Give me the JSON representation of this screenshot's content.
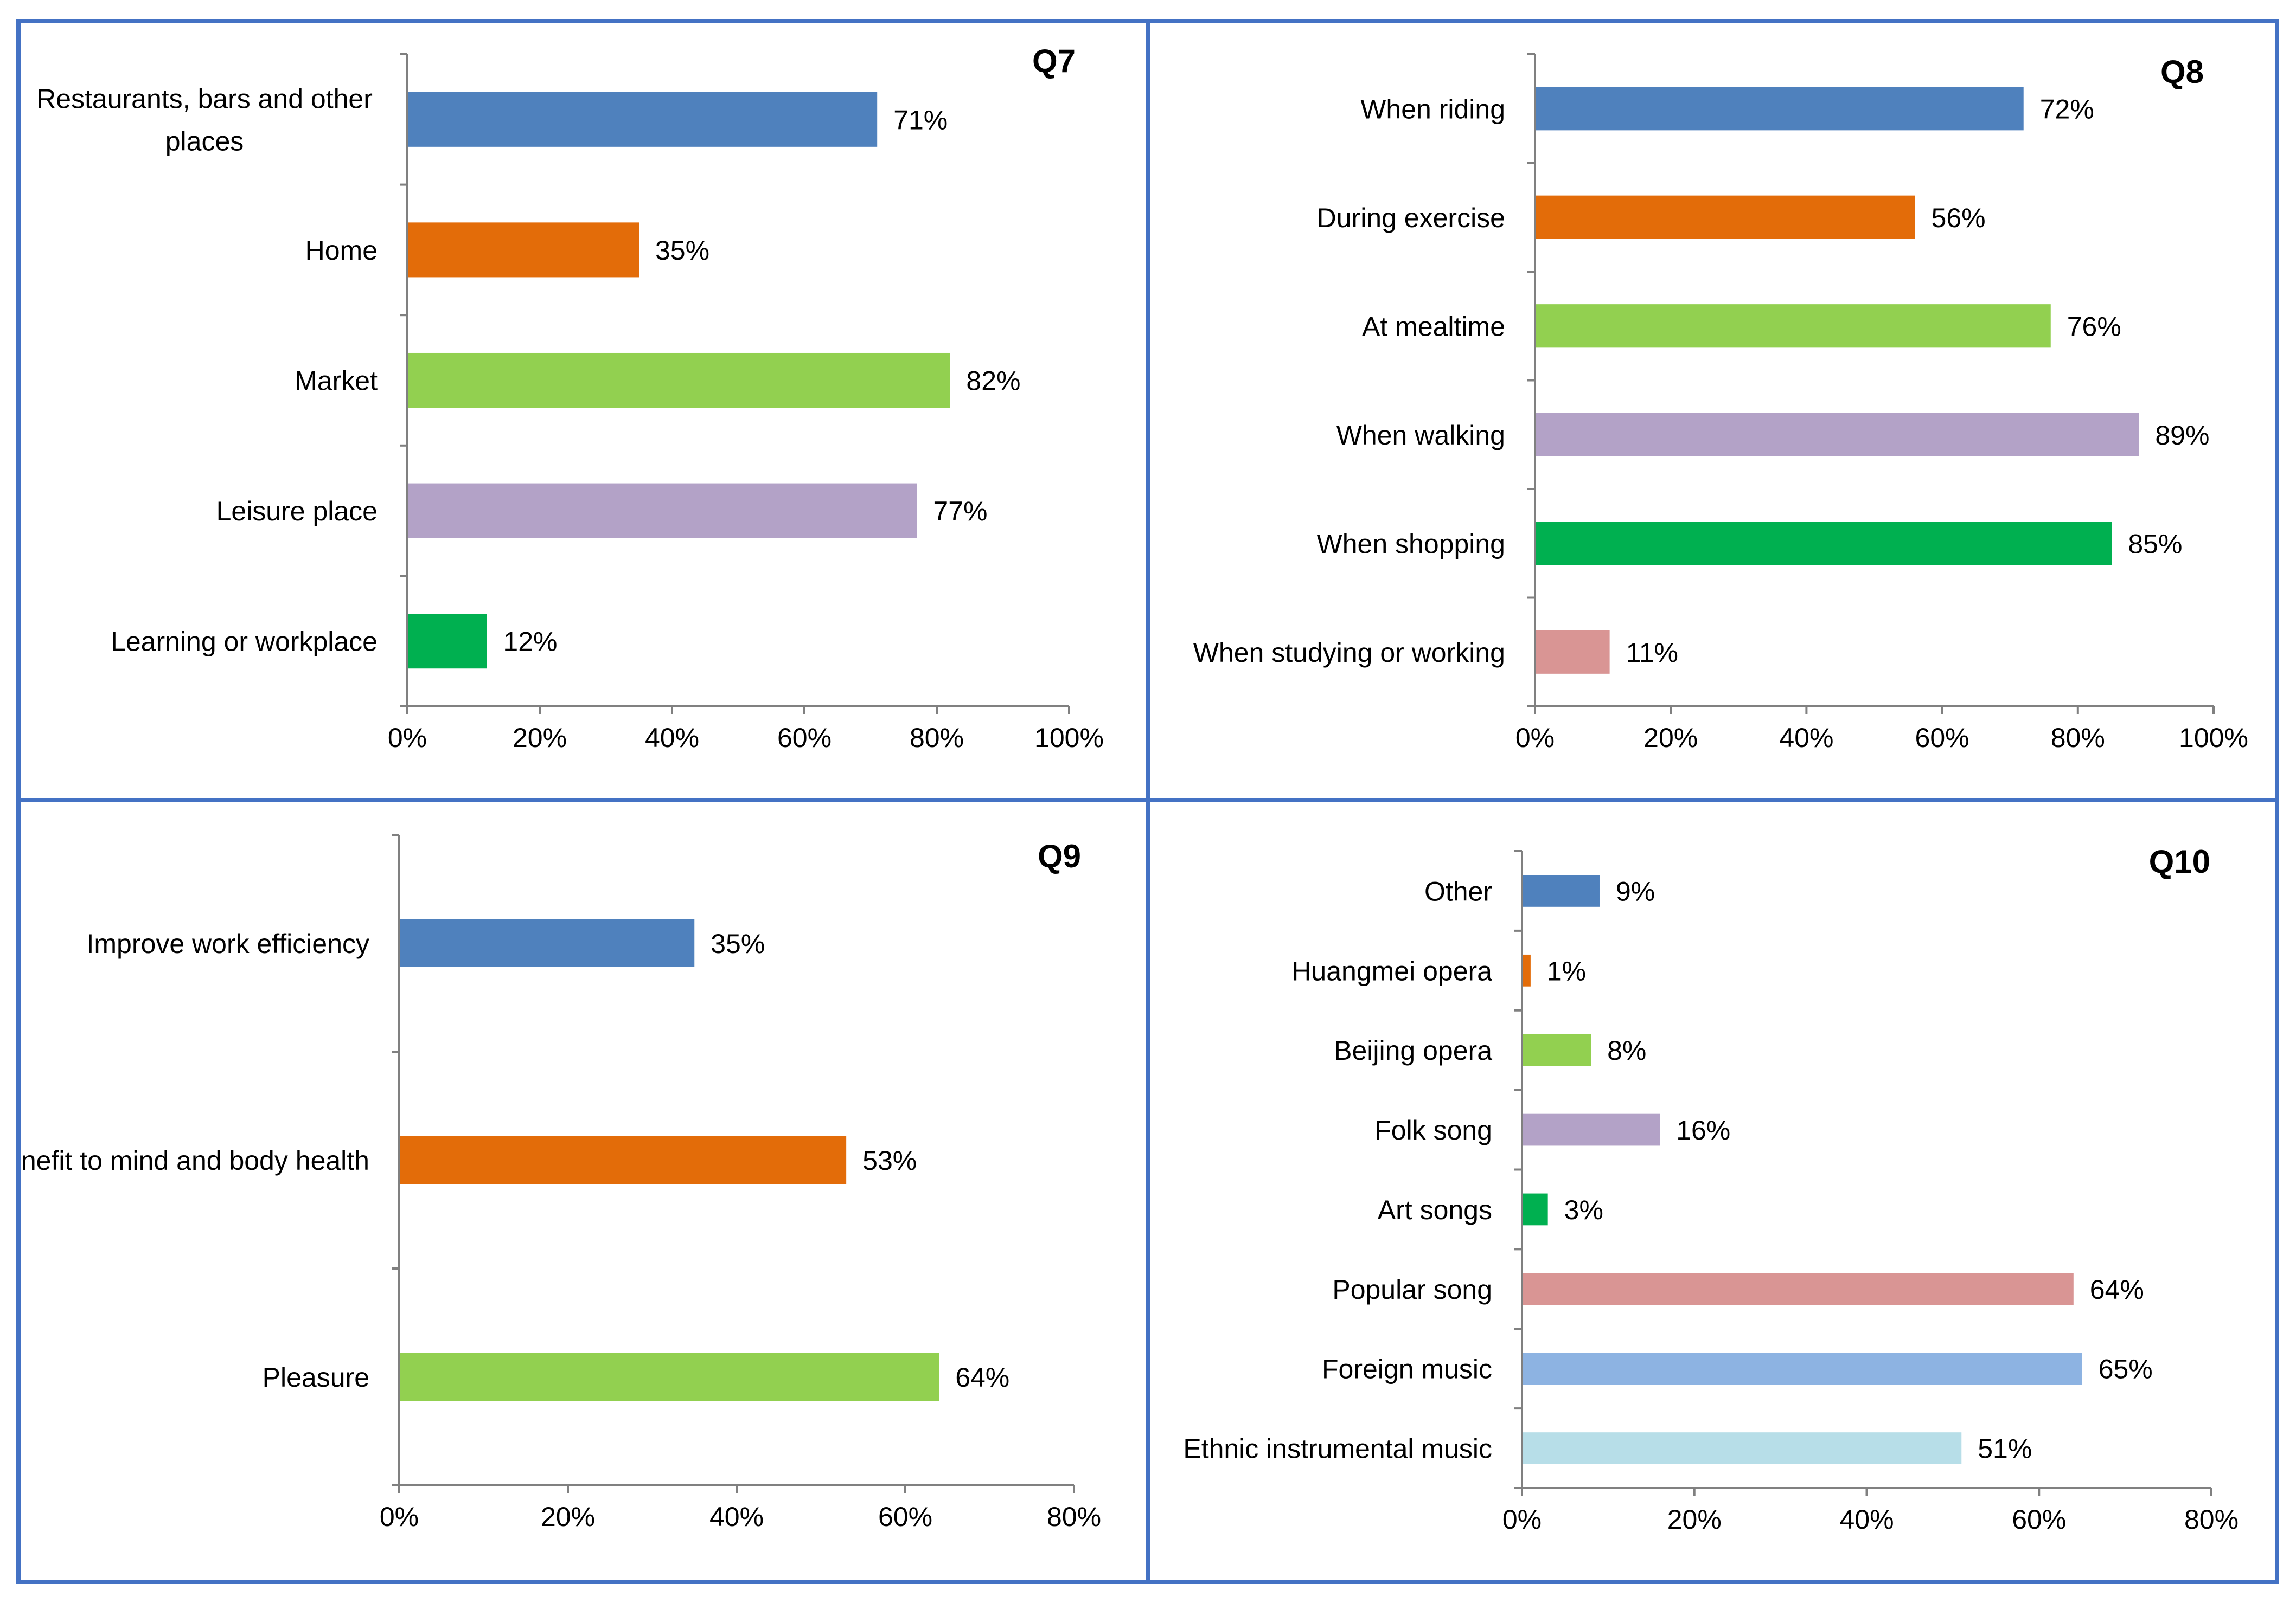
{
  "chart_data": [
    {
      "type": "bar",
      "orientation": "horizontal",
      "title": "Q7",
      "categories": [
        "Restaurants, bars and other places",
        "Home",
        "Market",
        "Leisure place",
        "Learning or workplace"
      ],
      "values": [
        71,
        35,
        82,
        77,
        12
      ],
      "value_labels": [
        "71%",
        "35%",
        "82%",
        "77%",
        "12%"
      ],
      "colors": [
        "#4F81BD",
        "#E36C09",
        "#92D050",
        "#B3A2C7",
        "#00B050"
      ],
      "xlim": [
        0,
        100
      ],
      "xticks": [
        "0%",
        "20%",
        "40%",
        "60%",
        "80%",
        "100%"
      ],
      "xlabel": "",
      "ylabel": "",
      "grid": false
    },
    {
      "type": "bar",
      "orientation": "horizontal",
      "title": "Q8",
      "categories": [
        "When riding",
        "During exercise",
        "At mealtime",
        "When walking",
        "When shopping",
        "When studying or working"
      ],
      "values": [
        72,
        56,
        76,
        89,
        85,
        11
      ],
      "value_labels": [
        "72%",
        "56%",
        "76%",
        "89%",
        "85%",
        "11%"
      ],
      "colors": [
        "#4F81BD",
        "#E36C09",
        "#92D050",
        "#B3A2C7",
        "#00B050",
        "#D99594"
      ],
      "xlim": [
        0,
        100
      ],
      "xticks": [
        "0%",
        "20%",
        "40%",
        "60%",
        "80%",
        "100%"
      ],
      "xlabel": "",
      "ylabel": "",
      "grid": false
    },
    {
      "type": "bar",
      "orientation": "horizontal",
      "title": "Q9",
      "categories": [
        "Improve work efficiency",
        "Benefit to mind and body health",
        "Pleasure"
      ],
      "values": [
        35,
        53,
        64
      ],
      "value_labels": [
        "35%",
        "53%",
        "64%"
      ],
      "colors": [
        "#4F81BD",
        "#E36C09",
        "#92D050"
      ],
      "xlim": [
        0,
        80
      ],
      "xticks": [
        "0%",
        "20%",
        "40%",
        "60%",
        "80%"
      ],
      "xlabel": "",
      "ylabel": "",
      "grid": false
    },
    {
      "type": "bar",
      "orientation": "horizontal",
      "title": "Q10",
      "categories": [
        "Other",
        "Huangmei opera",
        "Beijing opera",
        "Folk song",
        "Art songs",
        "Popular song",
        "Foreign music",
        "Ethnic instrumental music"
      ],
      "values": [
        9,
        1,
        8,
        16,
        3,
        64,
        65,
        51
      ],
      "value_labels": [
        "9%",
        "1%",
        "8%",
        "16%",
        "3%",
        "64%",
        "65%",
        "51%"
      ],
      "colors": [
        "#4F81BD",
        "#E36C09",
        "#92D050",
        "#B3A2C7",
        "#00B050",
        "#D99594",
        "#8DB3E2",
        "#B7DEE8"
      ],
      "xlim": [
        0,
        80
      ],
      "xticks": [
        "0%",
        "20%",
        "40%",
        "60%",
        "80%"
      ],
      "xlabel": "",
      "ylabel": "",
      "grid": false
    }
  ]
}
